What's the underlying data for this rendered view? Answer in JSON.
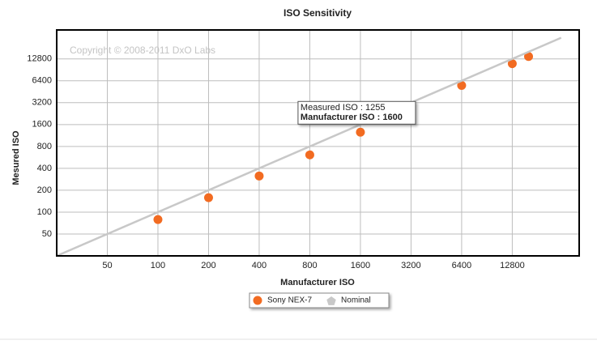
{
  "chart_data": {
    "type": "scatter",
    "title": "ISO Sensitivity",
    "xlabel": "Manufacturer ISO",
    "ylabel": "Mesured ISO",
    "watermark": "Copyright © 2008-2011 DxO Labs",
    "xscale": "log",
    "yscale": "log",
    "xlim": [
      25,
      32000
    ],
    "ylim": [
      25,
      32000
    ],
    "xticks": [
      50,
      100,
      200,
      400,
      800,
      1600,
      3200,
      6400,
      12800
    ],
    "yticks": [
      50,
      100,
      200,
      400,
      800,
      1600,
      3200,
      6400,
      12800
    ],
    "grid": true,
    "series": [
      {
        "name": "Sony NEX-7",
        "color": "#f26b21",
        "marker": "circle",
        "x": [
          100,
          200,
          400,
          800,
          1600,
          6400,
          12800,
          16000
        ],
        "values": [
          79,
          158,
          314,
          612,
          1255,
          5520,
          11000,
          13800
        ]
      },
      {
        "name": "Nominal",
        "color": "#c8c8c8",
        "marker": "pentagon",
        "type": "line",
        "x": [
          25,
          25000
        ],
        "values": [
          25,
          25000
        ]
      }
    ],
    "tooltip": {
      "series": 0,
      "point": 4,
      "lines": [
        "Measured ISO : 1255",
        "Manufacturer ISO : 1600"
      ]
    }
  }
}
